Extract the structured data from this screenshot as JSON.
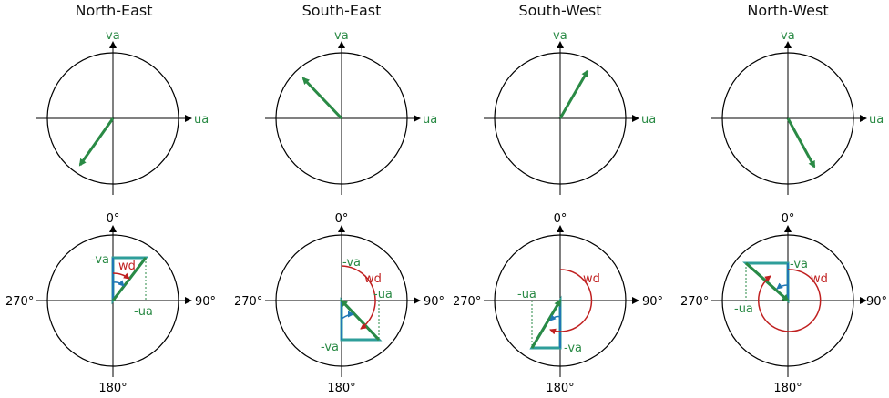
{
  "colors": {
    "vector": "#2a8a45",
    "wd": "#c02020",
    "blue": "#1f77b4",
    "teal": "#2e9e9a",
    "axis": "#000000"
  },
  "panels": [
    {
      "title": "North-East",
      "top": {
        "ua_label": "ua",
        "va_label": "va"
      },
      "bottom": {
        "north": "0°",
        "east": "90°",
        "south": "180°",
        "west": "270°",
        "wd_label": "wd",
        "va_label": "-va",
        "ua_label": "-ua"
      }
    },
    {
      "title": "South-East",
      "top": {
        "ua_label": "ua",
        "va_label": "va"
      },
      "bottom": {
        "north": "0°",
        "east": "90°",
        "south": "180°",
        "west": "270°",
        "wd_label": "wd",
        "va_label_top": "-va",
        "va_label": "-va",
        "ua_label": "-ua"
      }
    },
    {
      "title": "South-West",
      "top": {
        "ua_label": "ua",
        "va_label": "va"
      },
      "bottom": {
        "north": "0°",
        "east": "90°",
        "south": "180°",
        "west": "270°",
        "wd_label": "wd",
        "va_label": "-va",
        "ua_label": "-ua"
      }
    },
    {
      "title": "North-West",
      "top": {
        "ua_label": "ua",
        "va_label": "va"
      },
      "bottom": {
        "north": "0°",
        "east": "90°",
        "south": "180°",
        "west": "270°",
        "wd_label": "wd",
        "va_label": "-va",
        "ua_label": "-ua"
      }
    }
  ]
}
